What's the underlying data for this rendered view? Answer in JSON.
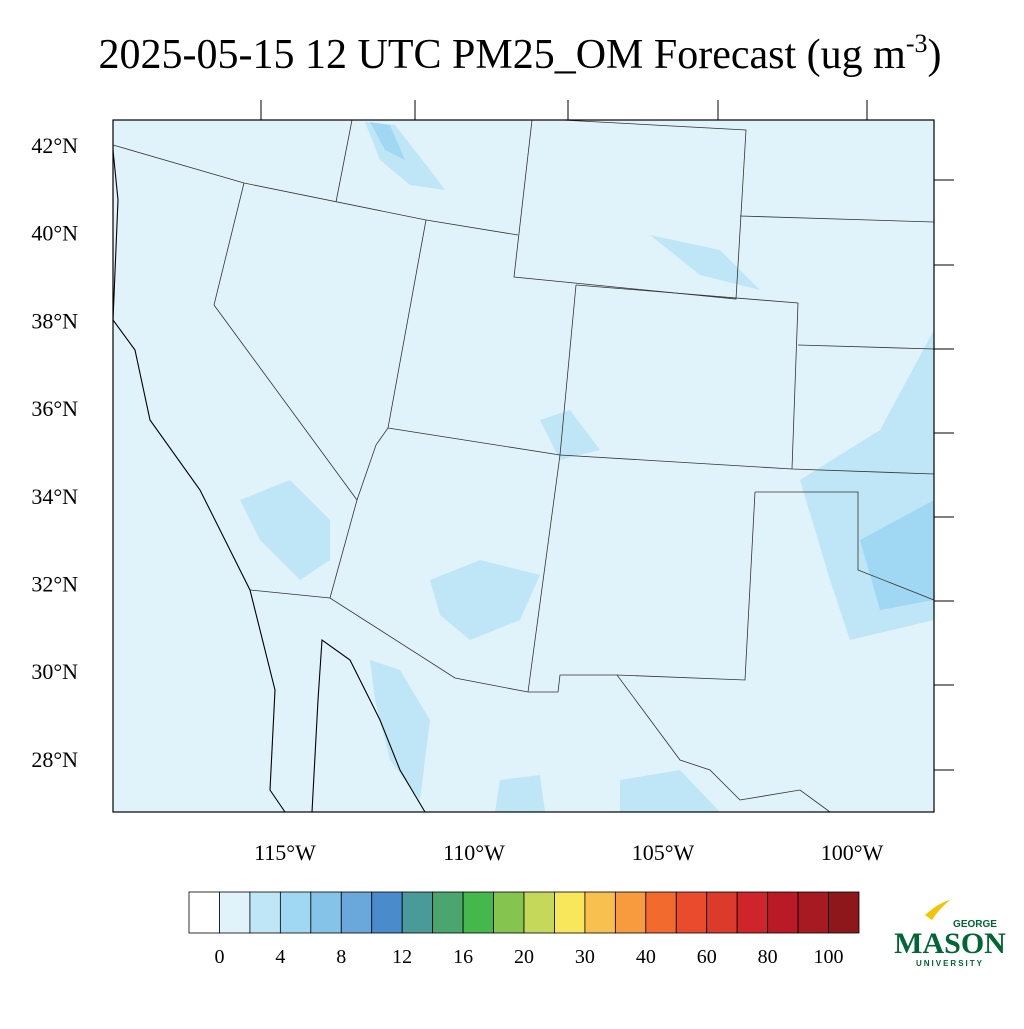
{
  "title": {
    "text": "2025-05-15 12 UTC PM25_OM Forecast (ug m",
    "superscript": "-3",
    "close": ")"
  },
  "map": {
    "lat_labels": [
      "42°N",
      "40°N",
      "38°N",
      "36°N",
      "34°N",
      "32°N",
      "30°N",
      "28°N"
    ],
    "lon_labels": [
      "115°W",
      "110°W",
      "105°W",
      "100°W"
    ]
  },
  "colorbar": {
    "labels": [
      0,
      4,
      8,
      12,
      16,
      20,
      30,
      40,
      60,
      80,
      100
    ],
    "colors": [
      "#ffffff",
      "#e0f3fb",
      "#bfe6f6",
      "#a0d8f3",
      "#85c3e8",
      "#6aa8dc",
      "#4a8ccb",
      "#4a9a99",
      "#4aa56f",
      "#44b84a",
      "#85c44e",
      "#c6d85a",
      "#f8e75b",
      "#f8c04e",
      "#f89a3e",
      "#f26a2d",
      "#e94b2c",
      "#dc3a2a",
      "#d0242b",
      "#ba1a25",
      "#a71a22",
      "#8e171c"
    ]
  },
  "logo": {
    "top": "GEORGE",
    "main": "MASON",
    "bottom": "UNIVERSITY"
  }
}
